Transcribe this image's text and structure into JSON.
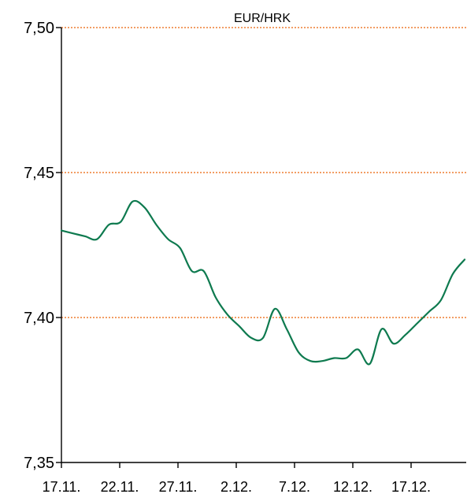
{
  "chart_data": {
    "type": "line",
    "title": "EUR/HRK",
    "xlabel": "",
    "ylabel": "",
    "ylim": [
      7.35,
      7.5
    ],
    "y_ticks": [
      "7,35",
      "7,40",
      "7,45",
      "7,50"
    ],
    "y_tick_values": [
      7.35,
      7.4,
      7.45,
      7.5
    ],
    "x_ticks": [
      "17.11.",
      "22.11.",
      "27.11.",
      "2.12.",
      "7.12.",
      "12.12.",
      "17.12."
    ],
    "grid": {
      "horizontal": true,
      "values": [
        7.4,
        7.45,
        7.5
      ],
      "style": "dotted",
      "color": "#ED7D31"
    },
    "series": [
      {
        "color": "#0E7A4F",
        "x": [
          "17.11.",
          "18.11.",
          "19.11.",
          "20.11.",
          "21.11.",
          "22.11.",
          "23.11.",
          "24.11.",
          "25.11.",
          "26.11.",
          "27.11.",
          "28.11.",
          "29.11.",
          "30.11.",
          "1.12.",
          "2.12.",
          "3.12.",
          "4.12.",
          "5.12.",
          "6.12.",
          "7.12.",
          "8.12.",
          "9.12.",
          "10.12.",
          "11.12.",
          "12.12.",
          "13.12.",
          "14.12.",
          "15.12.",
          "16.12.",
          "17.12.",
          "18.12.",
          "19.12.",
          "20.12.",
          "21.12."
        ],
        "values": [
          7.43,
          7.429,
          7.428,
          7.427,
          7.432,
          7.433,
          7.44,
          7.438,
          7.432,
          7.427,
          7.424,
          7.416,
          7.416,
          7.407,
          7.401,
          7.397,
          7.393,
          7.393,
          7.403,
          7.396,
          7.388,
          7.385,
          7.385,
          7.386,
          7.386,
          7.389,
          7.384,
          7.396,
          7.391,
          7.394,
          7.398,
          7.402,
          7.406,
          7.415,
          7.42
        ]
      }
    ]
  }
}
